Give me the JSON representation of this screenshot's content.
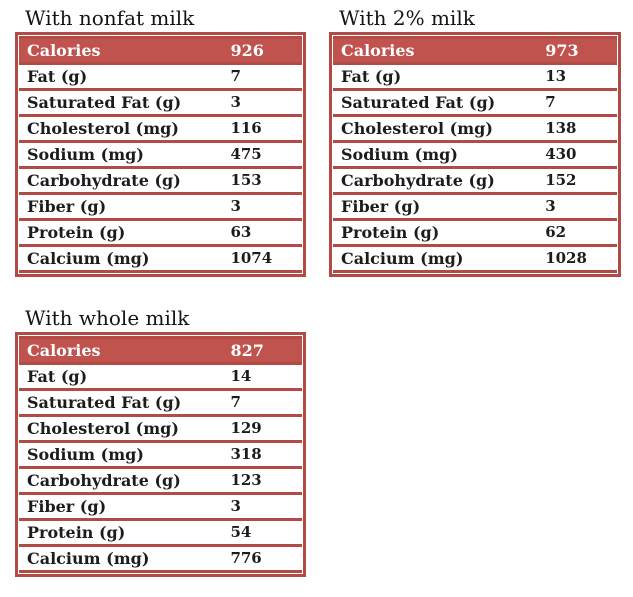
{
  "colors": {
    "header_bg": "#C0534E",
    "border_red": "#B24A46",
    "header_text": "#FFFFFF",
    "body_text": "#1C1C1C",
    "page_bg": "#FFFFFF"
  },
  "tables": [
    {
      "title": "With nonfat milk",
      "header": {
        "label": "Calories",
        "value": "926"
      },
      "rows": [
        {
          "label": "Fat (g)",
          "value": "7"
        },
        {
          "label": "Saturated Fat (g)",
          "value": "3"
        },
        {
          "label": "Cholesterol (mg)",
          "value": "116"
        },
        {
          "label": "Sodium (mg)",
          "value": "475"
        },
        {
          "label": "Carbohydrate (g)",
          "value": "153"
        },
        {
          "label": "Fiber (g)",
          "value": "3"
        },
        {
          "label": "Protein (g)",
          "value": "63"
        },
        {
          "label": "Calcium (mg)",
          "value": "1074"
        }
      ]
    },
    {
      "title": "With 2% milk",
      "header": {
        "label": "Calories",
        "value": "973"
      },
      "rows": [
        {
          "label": "Fat (g)",
          "value": "13"
        },
        {
          "label": "Saturated Fat (g)",
          "value": "7"
        },
        {
          "label": "Cholesterol (mg)",
          "value": "138"
        },
        {
          "label": "Sodium (mg)",
          "value": "430"
        },
        {
          "label": "Carbohydrate (g)",
          "value": "152"
        },
        {
          "label": "Fiber (g)",
          "value": "3"
        },
        {
          "label": "Protein (g)",
          "value": "62"
        },
        {
          "label": "Calcium (mg)",
          "value": "1028"
        }
      ]
    },
    {
      "title": "With whole milk",
      "header": {
        "label": "Calories",
        "value": "827"
      },
      "rows": [
        {
          "label": "Fat (g)",
          "value": "14"
        },
        {
          "label": "Saturated Fat (g)",
          "value": "7"
        },
        {
          "label": "Cholesterol (mg)",
          "value": "129"
        },
        {
          "label": "Sodium (mg)",
          "value": "318"
        },
        {
          "label": "Carbohydrate (g)",
          "value": "123"
        },
        {
          "label": "Fiber (g)",
          "value": "3"
        },
        {
          "label": "Protein (g)",
          "value": "54"
        },
        {
          "label": "Calcium (mg)",
          "value": "776"
        }
      ]
    }
  ]
}
